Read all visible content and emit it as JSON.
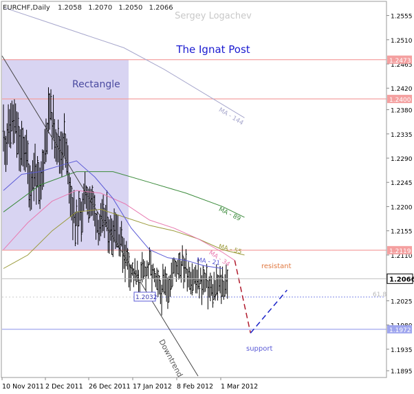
{
  "chart_data": {
    "type": "ohlc",
    "symbol_info": {
      "symbol": "EURCHF,Daily",
      "open": "1.2058",
      "high": "1.2070",
      "low": "1.2050",
      "close": "1.2066"
    },
    "watermark": "Sergey Logachev",
    "title": "The Ignat Post",
    "ylim": [
      1.1885,
      1.258
    ],
    "y_ticks": [
      "1.2555",
      "1.2510",
      "1.2465",
      "1.2420",
      "1.2380",
      "1.2335",
      "1.2290",
      "1.2245",
      "1.2200",
      "1.2155",
      "1.2110",
      "1.2066",
      "1.2025",
      "1.1980",
      "1.1935",
      "1.1895"
    ],
    "x_ticks": [
      "10 Nov 2011",
      "2 Dec 2011",
      "26 Dec 2011",
      "17 Jan 2012",
      "8 Feb 2012",
      "1 Mar 2012"
    ],
    "current_price": "1.2066",
    "levels": [
      {
        "value": 1.2473,
        "label": "1.2473",
        "kind": "resistance-line",
        "color": "#f4a0a0"
      },
      {
        "value": 1.24,
        "label": "1.2400",
        "kind": "resistance-line",
        "color": "#f4a0a0"
      },
      {
        "value": 1.2119,
        "label": "1.2119",
        "kind": "resistance-line",
        "color": "#f4a0a0"
      },
      {
        "value": 1.1972,
        "label": "1.1972",
        "kind": "support-line",
        "color": "#9fa6ee"
      },
      {
        "value": 1.2032,
        "label": "61.8",
        "kind": "fibo-line",
        "color": "#9fa6ee"
      }
    ],
    "annotations": {
      "rectangle": "Rectangle",
      "downtrend": "Downtrend",
      "resistant": "resistant",
      "support": "support",
      "low_price": "1.2032"
    },
    "moving_averages": [
      {
        "name": "MA - 144",
        "color": "#a6a6cc",
        "x": [
          0,
          33,
          66,
          99,
          132,
          165,
          198
        ],
        "y": [
          1.257,
          1.2545,
          1.252,
          1.2495,
          1.2455,
          1.241,
          1.2365
        ]
      },
      {
        "name": "MA - 89",
        "color": "#3a8a3a",
        "x": [
          0,
          30,
          60,
          90,
          120,
          150,
          180,
          198
        ],
        "y": [
          1.219,
          1.224,
          1.2265,
          1.2265,
          1.2245,
          1.2225,
          1.22,
          1.218
        ]
      },
      {
        "name": "MA - 55",
        "color": "#9a9a3a",
        "x": [
          0,
          20,
          40,
          60,
          80,
          100,
          120,
          140,
          160,
          180,
          198
        ],
        "y": [
          1.2085,
          1.211,
          1.2155,
          1.219,
          1.2195,
          1.218,
          1.2165,
          1.2155,
          1.214,
          1.212,
          1.211
        ]
      },
      {
        "name": "MA - 34",
        "color": "#e87ab0",
        "x": [
          0,
          20,
          40,
          60,
          80,
          100,
          120,
          140,
          160,
          180,
          190
        ],
        "y": [
          1.212,
          1.217,
          1.221,
          1.223,
          1.2225,
          1.2205,
          1.2175,
          1.216,
          1.214,
          1.2115,
          1.21
        ]
      },
      {
        "name": "MA - 21",
        "color": "#5a5ad6",
        "x": [
          0,
          15,
          30,
          45,
          60,
          75,
          90,
          105,
          120,
          135,
          150,
          165,
          180
        ],
        "y": [
          1.223,
          1.226,
          1.2265,
          1.2275,
          1.2285,
          1.2255,
          1.2215,
          1.216,
          1.212,
          1.2105,
          1.21,
          1.209,
          1.2085
        ]
      }
    ],
    "projection": {
      "down": {
        "x": [
          190,
          203
        ],
        "y": [
          1.21,
          1.1965
        ]
      },
      "up": {
        "x": [
          203,
          233
        ],
        "y": [
          1.1965,
          1.2045
        ]
      }
    }
  }
}
